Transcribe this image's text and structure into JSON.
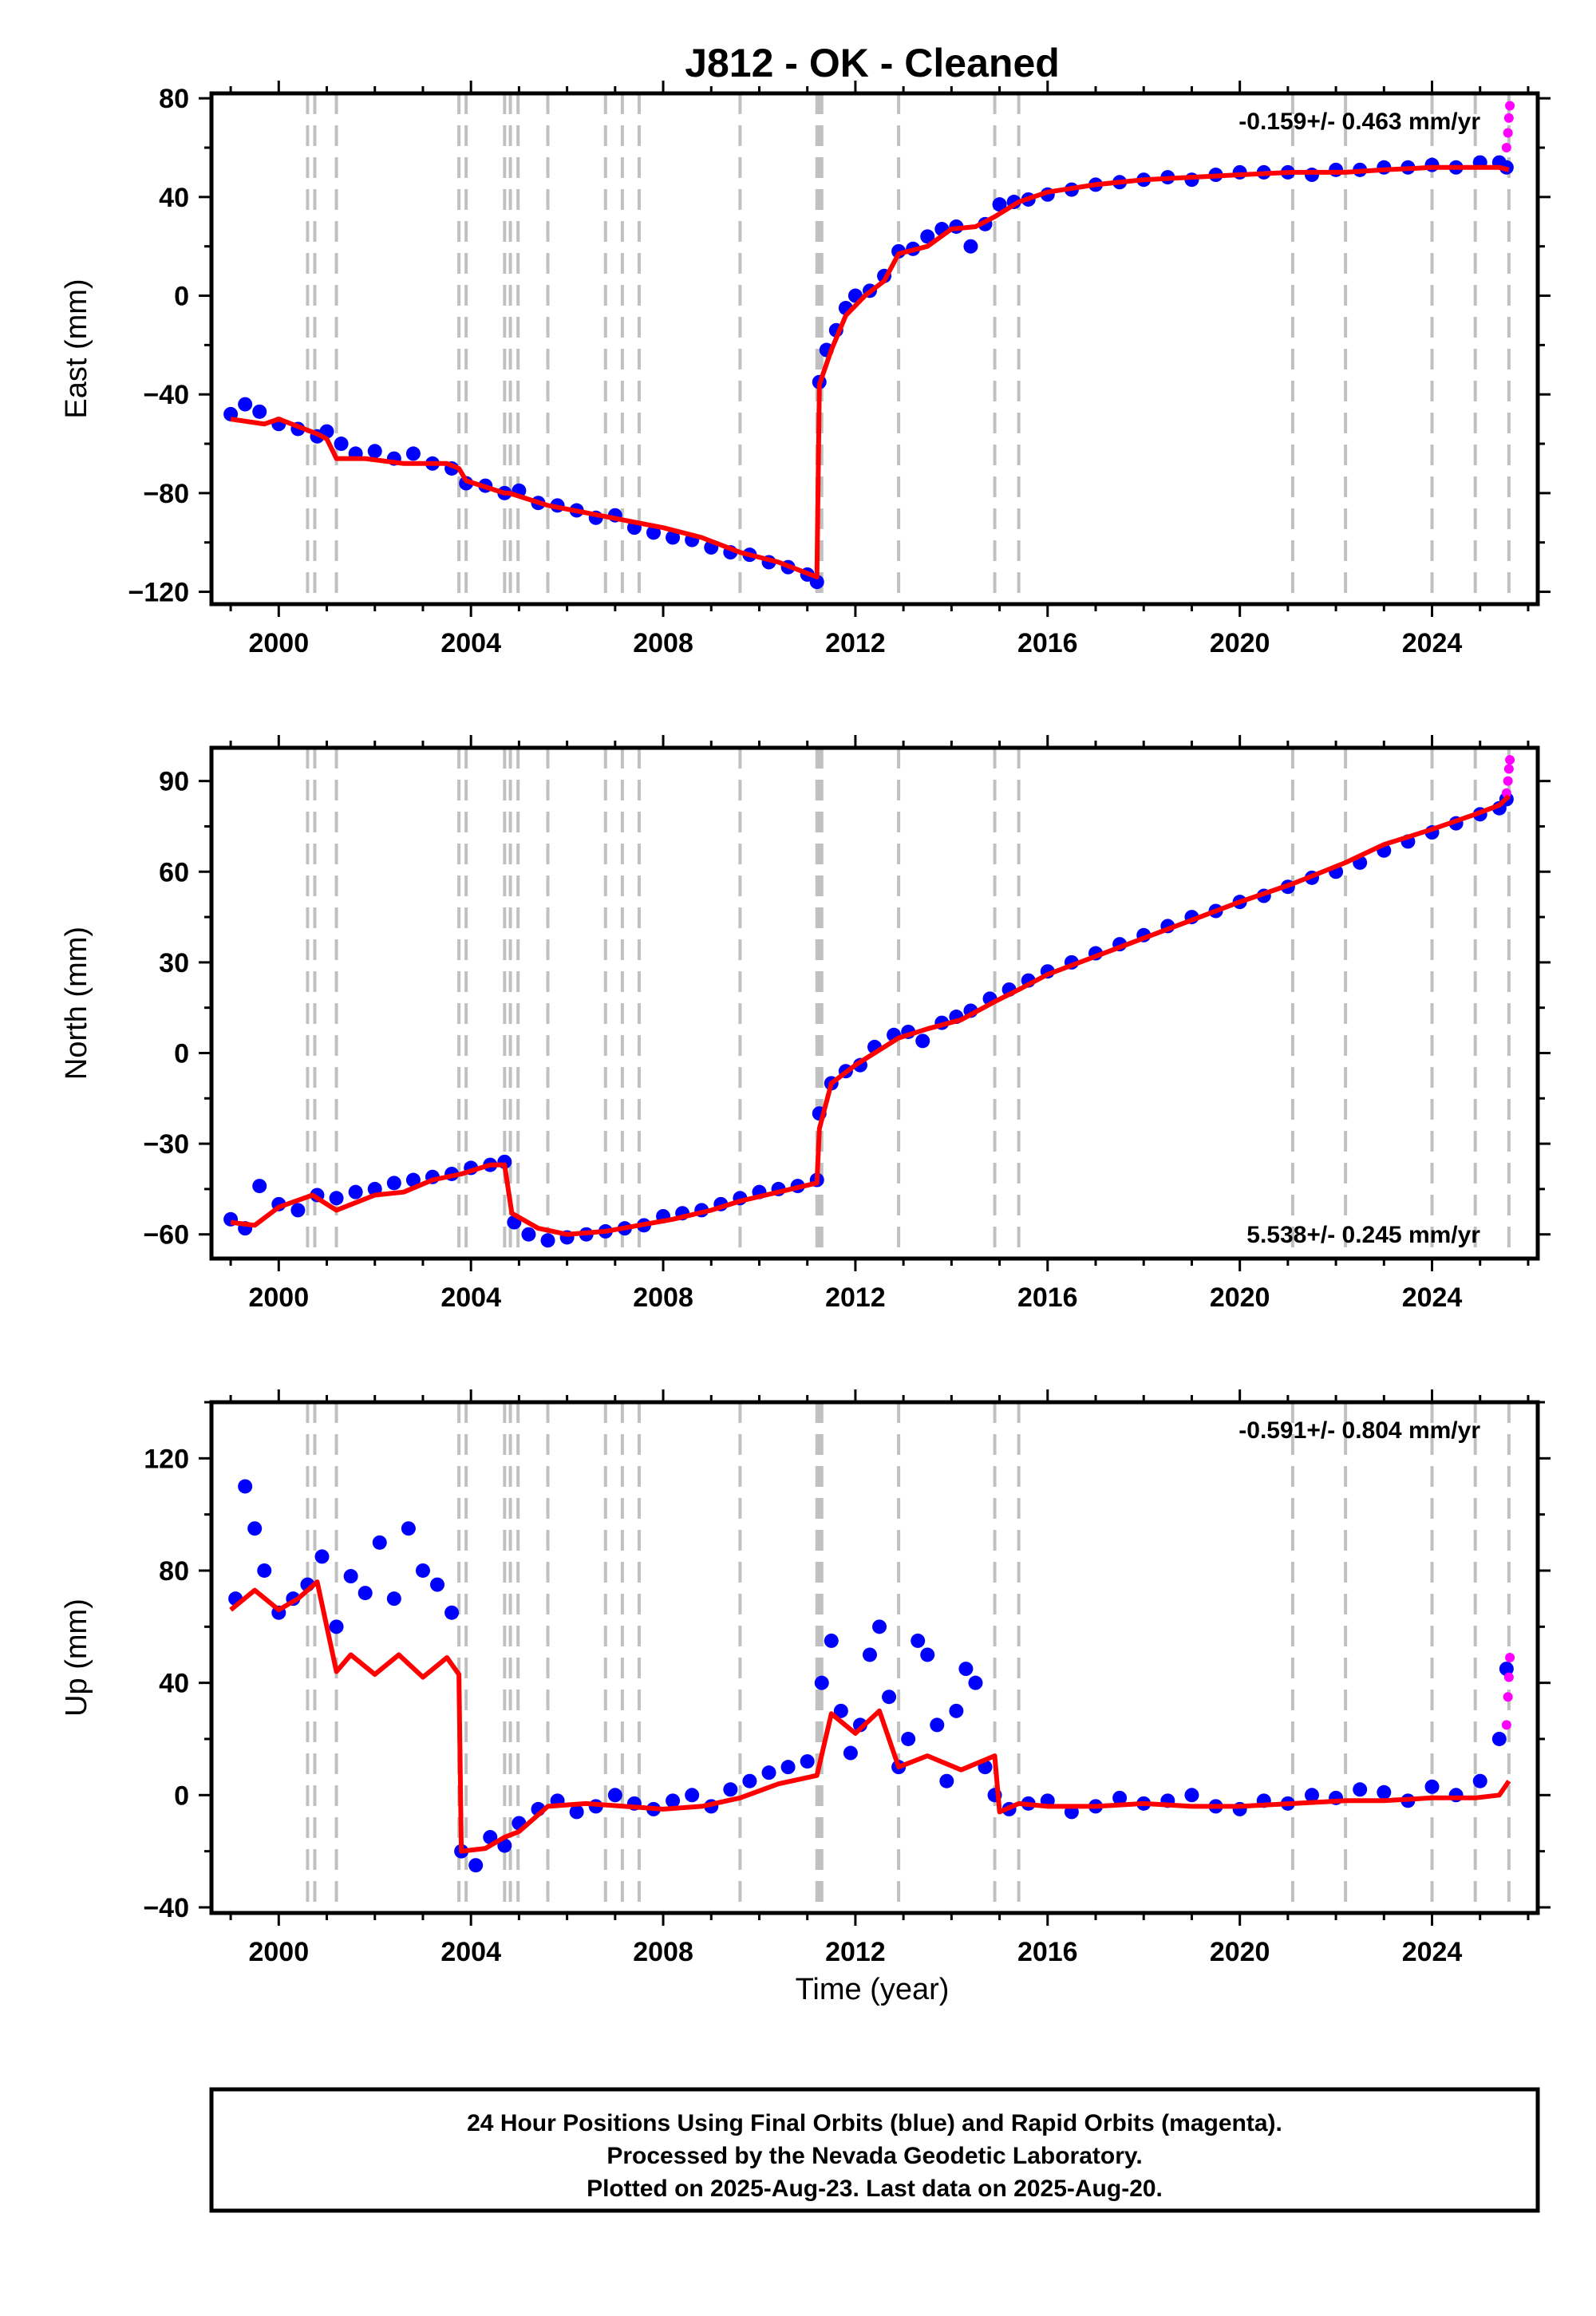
{
  "title": "J812  - OK - Cleaned",
  "xlabel": "Time (year)",
  "caption": {
    "line1": "24 Hour Positions Using Final Orbits (blue) and Rapid Orbits (magenta).",
    "line2": "Processed by the Nevada Geodetic Laboratory.",
    "line3": "Plotted on 2025-Aug-23. Last data on 2025-Aug-20."
  },
  "colors": {
    "final": "#0000ff",
    "rapid": "#ff00ff",
    "model": "#ff0000",
    "events": "#c0c0c0"
  },
  "chart_data": [
    {
      "type": "scatter",
      "component": "east",
      "ylabel": "East (mm)",
      "rate": "-0.159+/- 0.463 mm/yr",
      "rate_position": "top-right",
      "xlim": [
        1998.6,
        2026.2
      ],
      "ylim": [
        -125,
        82
      ],
      "xticks": [
        2000,
        2004,
        2008,
        2012,
        2016,
        2020,
        2024
      ],
      "yticks": [
        -120,
        -80,
        -40,
        0,
        40,
        80
      ],
      "event_lines": [
        2000.6,
        2000.75,
        2001.2,
        2003.75,
        2003.9,
        2004.7,
        2004.82,
        2004.98,
        2005.6,
        2006.8,
        2007.15,
        2007.5,
        2009.6,
        2011.2,
        2011.25,
        2011.3,
        2012.9,
        2014.9,
        2015.4,
        2021.1,
        2022.2,
        2024.0,
        2024.9,
        2025.6
      ],
      "series": [
        {
          "role": "final",
          "x": [
            1999.0,
            1999.3,
            1999.6,
            2000.0,
            2000.4,
            2000.8,
            2001.0,
            2001.3,
            2001.6,
            2002.0,
            2002.4,
            2002.8,
            2003.2,
            2003.6,
            2003.9,
            2004.3,
            2004.7,
            2005.0,
            2005.4,
            2005.8,
            2006.2,
            2006.6,
            2007.0,
            2007.4,
            2007.8,
            2008.2,
            2008.6,
            2009.0,
            2009.4,
            2009.8,
            2010.2,
            2010.6,
            2011.0,
            2011.2,
            2011.25,
            2011.4,
            2011.6,
            2011.8,
            2012.0,
            2012.3,
            2012.6,
            2012.9,
            2013.2,
            2013.5,
            2013.8,
            2014.1,
            2014.4,
            2014.7,
            2015.0,
            2015.3,
            2015.6,
            2016.0,
            2016.5,
            2017.0,
            2017.5,
            2018.0,
            2018.5,
            2019.0,
            2019.5,
            2020.0,
            2020.5,
            2021.0,
            2021.5,
            2022.0,
            2022.5,
            2023.0,
            2023.5,
            2024.0,
            2024.5,
            2025.0,
            2025.4,
            2025.55
          ],
          "y": [
            -48,
            -44,
            -47,
            -52,
            -54,
            -57,
            -55,
            -60,
            -64,
            -63,
            -66,
            -64,
            -68,
            -70,
            -76,
            -77,
            -80,
            -79,
            -84,
            -85,
            -87,
            -90,
            -89,
            -94,
            -96,
            -98,
            -99,
            -102,
            -104,
            -105,
            -108,
            -110,
            -113,
            -116,
            -35,
            -22,
            -14,
            -5,
            0,
            2,
            8,
            18,
            19,
            24,
            27,
            28,
            20,
            29,
            37,
            38,
            39,
            41,
            43,
            45,
            46,
            47,
            48,
            47,
            49,
            50,
            50,
            50,
            49,
            51,
            51,
            52,
            52,
            53,
            52,
            54,
            54,
            52
          ]
        },
        {
          "role": "rapid",
          "x": [
            2025.55,
            2025.58,
            2025.6,
            2025.62
          ],
          "y": [
            60,
            66,
            72,
            77
          ]
        },
        {
          "role": "model",
          "x": [
            1999.0,
            1999.7,
            2000.0,
            2000.8,
            2001.0,
            2001.2,
            2001.8,
            2002.6,
            2003.5,
            2003.75,
            2003.9,
            2004.7,
            2004.8,
            2005.6,
            2006.4,
            2007.2,
            2008.0,
            2008.8,
            2009.6,
            2010.4,
            2011.2,
            2011.25,
            2011.5,
            2011.8,
            2012.2,
            2012.6,
            2012.9,
            2013.5,
            2014.0,
            2014.5,
            2014.9,
            2015.4,
            2016.0,
            2017.0,
            2018.0,
            2019.0,
            2020.0,
            2021.1,
            2022.2,
            2023.0,
            2024.0,
            2024.9,
            2025.4,
            2025.6
          ],
          "y": [
            -50,
            -52,
            -50,
            -56,
            -58,
            -66,
            -66,
            -68,
            -68,
            -70,
            -75,
            -80,
            -80,
            -85,
            -88,
            -91,
            -94,
            -98,
            -104,
            -108,
            -114,
            -36,
            -22,
            -8,
            0,
            6,
            17,
            20,
            27,
            28,
            32,
            38,
            42,
            45,
            47,
            48,
            49,
            50,
            50,
            51,
            52,
            52,
            52,
            51
          ]
        }
      ]
    },
    {
      "type": "scatter",
      "component": "north",
      "ylabel": "North (mm)",
      "rate": "5.538+/- 0.245 mm/yr",
      "rate_position": "bottom-right",
      "xlim": [
        1998.6,
        2026.2
      ],
      "ylim": [
        -68,
        101
      ],
      "xticks": [
        2000,
        2004,
        2008,
        2012,
        2016,
        2020,
        2024
      ],
      "yticks": [
        -60,
        -30,
        0,
        30,
        60,
        90
      ],
      "event_lines": [
        2000.6,
        2000.75,
        2001.2,
        2003.75,
        2003.9,
        2004.7,
        2004.82,
        2004.98,
        2005.6,
        2006.8,
        2007.15,
        2007.5,
        2009.6,
        2011.2,
        2011.25,
        2011.3,
        2012.9,
        2014.9,
        2015.4,
        2021.1,
        2022.2,
        2024.0,
        2024.9,
        2025.6
      ],
      "series": [
        {
          "role": "final",
          "x": [
            1999.0,
            1999.3,
            1999.6,
            2000.0,
            2000.4,
            2000.8,
            2001.2,
            2001.6,
            2002.0,
            2002.4,
            2002.8,
            2003.2,
            2003.6,
            2004.0,
            2004.4,
            2004.7,
            2004.9,
            2005.2,
            2005.6,
            2006.0,
            2006.4,
            2006.8,
            2007.2,
            2007.6,
            2008.0,
            2008.4,
            2008.8,
            2009.2,
            2009.6,
            2010.0,
            2010.4,
            2010.8,
            2011.2,
            2011.25,
            2011.5,
            2011.8,
            2012.1,
            2012.4,
            2012.8,
            2013.1,
            2013.4,
            2013.8,
            2014.1,
            2014.4,
            2014.8,
            2015.2,
            2015.6,
            2016.0,
            2016.5,
            2017.0,
            2017.5,
            2018.0,
            2018.5,
            2019.0,
            2019.5,
            2020.0,
            2020.5,
            2021.0,
            2021.5,
            2022.0,
            2022.5,
            2023.0,
            2023.5,
            2024.0,
            2024.5,
            2025.0,
            2025.4,
            2025.55
          ],
          "y": [
            -55,
            -58,
            -44,
            -50,
            -52,
            -47,
            -48,
            -46,
            -45,
            -43,
            -42,
            -41,
            -40,
            -38,
            -37,
            -36,
            -56,
            -60,
            -62,
            -61,
            -60,
            -59,
            -58,
            -57,
            -54,
            -53,
            -52,
            -50,
            -48,
            -46,
            -45,
            -44,
            -42,
            -20,
            -10,
            -6,
            -4,
            2,
            6,
            7,
            4,
            10,
            12,
            14,
            18,
            21,
            24,
            27,
            30,
            33,
            36,
            39,
            42,
            45,
            47,
            50,
            52,
            55,
            58,
            60,
            63,
            67,
            70,
            73,
            76,
            79,
            81,
            84
          ]
        },
        {
          "role": "rapid",
          "x": [
            2025.55,
            2025.58,
            2025.6,
            2025.62
          ],
          "y": [
            86,
            90,
            94,
            97
          ]
        },
        {
          "role": "model",
          "x": [
            1999.0,
            1999.5,
            2000.0,
            2000.7,
            2001.2,
            2002.0,
            2002.6,
            2003.2,
            2003.8,
            2004.4,
            2004.7,
            2004.85,
            2005.4,
            2006.0,
            2006.8,
            2007.5,
            2008.2,
            2009.0,
            2009.6,
            2010.4,
            2011.2,
            2011.25,
            2011.5,
            2012.0,
            2012.9,
            2013.5,
            2014.2,
            2014.9,
            2015.4,
            2016.0,
            2017.0,
            2018.0,
            2019.0,
            2020.0,
            2021.1,
            2022.2,
            2023.0,
            2024.0,
            2024.9,
            2025.4,
            2025.6
          ],
          "y": [
            -56,
            -57,
            -51,
            -47,
            -52,
            -47,
            -46,
            -42,
            -40,
            -37,
            -37,
            -53,
            -58,
            -60,
            -59,
            -57,
            -55,
            -52,
            -49,
            -46,
            -43,
            -25,
            -10,
            -4,
            5,
            8,
            11,
            17,
            21,
            26,
            32,
            38,
            44,
            50,
            56,
            63,
            69,
            74,
            79,
            82,
            85
          ]
        }
      ]
    },
    {
      "type": "scatter",
      "component": "up",
      "ylabel": "Up (mm)",
      "rate": "-0.591+/- 0.804 mm/yr",
      "rate_position": "top-right",
      "xlim": [
        1998.6,
        2026.2
      ],
      "ylim": [
        -42,
        140
      ],
      "xticks": [
        2000,
        2004,
        2008,
        2012,
        2016,
        2020,
        2024
      ],
      "yticks": [
        -40,
        0,
        40,
        80,
        120
      ],
      "event_lines": [
        2000.6,
        2000.75,
        2001.2,
        2003.75,
        2003.9,
        2004.7,
        2004.82,
        2004.98,
        2005.6,
        2006.8,
        2007.15,
        2007.5,
        2009.6,
        2011.2,
        2011.25,
        2011.3,
        2012.9,
        2014.9,
        2015.4,
        2021.1,
        2022.2,
        2024.0,
        2024.9,
        2025.6
      ],
      "series": [
        {
          "role": "final",
          "x": [
            1999.1,
            1999.3,
            1999.5,
            1999.7,
            2000.0,
            2000.3,
            2000.6,
            2000.9,
            2001.2,
            2001.5,
            2001.8,
            2002.1,
            2002.4,
            2002.7,
            2003.0,
            2003.3,
            2003.6,
            2003.8,
            2004.1,
            2004.4,
            2004.7,
            2005.0,
            2005.4,
            2005.8,
            2006.2,
            2006.6,
            2007.0,
            2007.4,
            2007.8,
            2008.2,
            2008.6,
            2009.0,
            2009.4,
            2009.8,
            2010.2,
            2010.6,
            2011.0,
            2011.3,
            2011.5,
            2011.7,
            2011.9,
            2012.1,
            2012.3,
            2012.5,
            2012.7,
            2012.9,
            2013.1,
            2013.3,
            2013.5,
            2013.7,
            2013.9,
            2014.1,
            2014.3,
            2014.5,
            2014.7,
            2014.9,
            2015.2,
            2015.6,
            2016.0,
            2016.5,
            2017.0,
            2017.5,
            2018.0,
            2018.5,
            2019.0,
            2019.5,
            2020.0,
            2020.5,
            2021.0,
            2021.5,
            2022.0,
            2022.5,
            2023.0,
            2023.5,
            2024.0,
            2024.5,
            2025.0,
            2025.4,
            2025.55
          ],
          "y": [
            70,
            110,
            95,
            80,
            65,
            70,
            75,
            85,
            60,
            78,
            72,
            90,
            70,
            95,
            80,
            75,
            65,
            -20,
            -25,
            -15,
            -18,
            -10,
            -5,
            -2,
            -6,
            -4,
            0,
            -3,
            -5,
            -2,
            0,
            -4,
            2,
            5,
            8,
            10,
            12,
            40,
            55,
            30,
            15,
            25,
            50,
            60,
            35,
            10,
            20,
            55,
            50,
            25,
            5,
            30,
            45,
            40,
            10,
            0,
            -5,
            -3,
            -2,
            -6,
            -4,
            -1,
            -3,
            -2,
            0,
            -4,
            -5,
            -2,
            -3,
            0,
            -1,
            2,
            1,
            -2,
            3,
            0,
            5,
            20,
            45
          ]
        },
        {
          "role": "rapid",
          "x": [
            2025.55,
            2025.58,
            2025.6,
            2025.62
          ],
          "y": [
            25,
            35,
            42,
            49
          ]
        },
        {
          "role": "model",
          "x": [
            1999.0,
            1999.5,
            2000.0,
            2000.4,
            2000.8,
            2001.2,
            2001.5,
            2002.0,
            2002.5,
            2003.0,
            2003.5,
            2003.75,
            2003.8,
            2004.3,
            2004.7,
            2005.0,
            2005.6,
            2006.4,
            2007.2,
            2008.0,
            2008.8,
            2009.6,
            2010.4,
            2011.2,
            2011.5,
            2012.0,
            2012.5,
            2012.9,
            2013.5,
            2014.2,
            2014.9,
            2015.0,
            2015.4,
            2016.0,
            2017.0,
            2018.0,
            2019.0,
            2020.0,
            2021.1,
            2022.2,
            2023.0,
            2024.0,
            2024.9,
            2025.4,
            2025.6
          ],
          "y": [
            66,
            73,
            66,
            70,
            76,
            44,
            50,
            43,
            50,
            42,
            49,
            43,
            -20,
            -19,
            -15,
            -13,
            -4,
            -3,
            -4,
            -5,
            -4,
            -1,
            4,
            7,
            29,
            22,
            30,
            10,
            14,
            9,
            14,
            -6,
            -3,
            -4,
            -4,
            -3,
            -4,
            -4,
            -3,
            -2,
            -2,
            -1,
            -1,
            0,
            5
          ]
        }
      ]
    }
  ]
}
